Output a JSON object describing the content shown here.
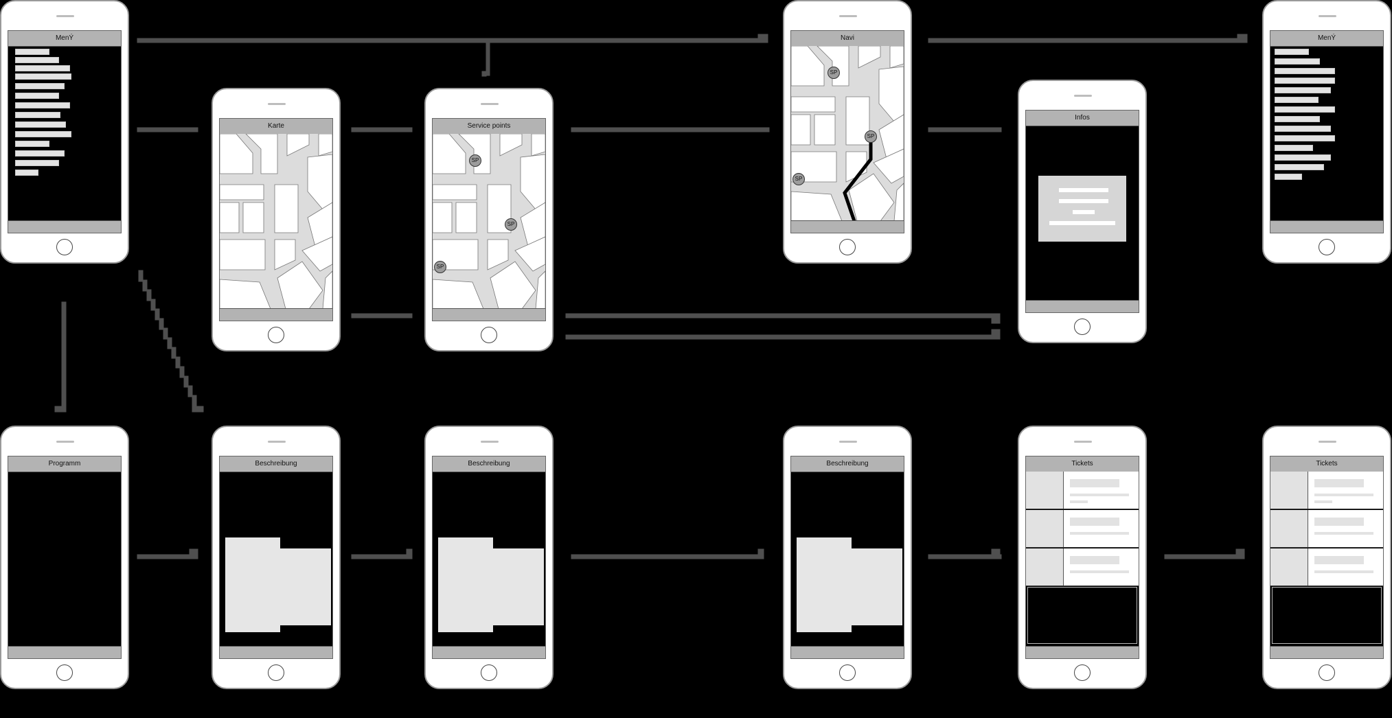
{
  "screens": {
    "menu_left": {
      "title": "MenÝ"
    },
    "map": {
      "title": "Karte"
    },
    "service": {
      "title": "Service points"
    },
    "navi": {
      "title": "Navi"
    },
    "infos": {
      "title": "Infos"
    },
    "menu_right": {
      "title": "MenÝ"
    },
    "program": {
      "title": "Programm"
    },
    "desc1": {
      "title": "Beschreibung"
    },
    "desc2": {
      "title": "Beschreibung"
    },
    "desc3": {
      "title": "Beschreibung"
    },
    "tickets1": {
      "title": "Tickets"
    },
    "tickets2": {
      "title": "Tickets"
    }
  },
  "pins": {
    "label": "SP"
  },
  "colors": {
    "background": "#000000",
    "phone_body": "#ffffff",
    "bar": "#b3b3b3",
    "connector": "#555555",
    "placeholder": "#e3e3e3"
  }
}
